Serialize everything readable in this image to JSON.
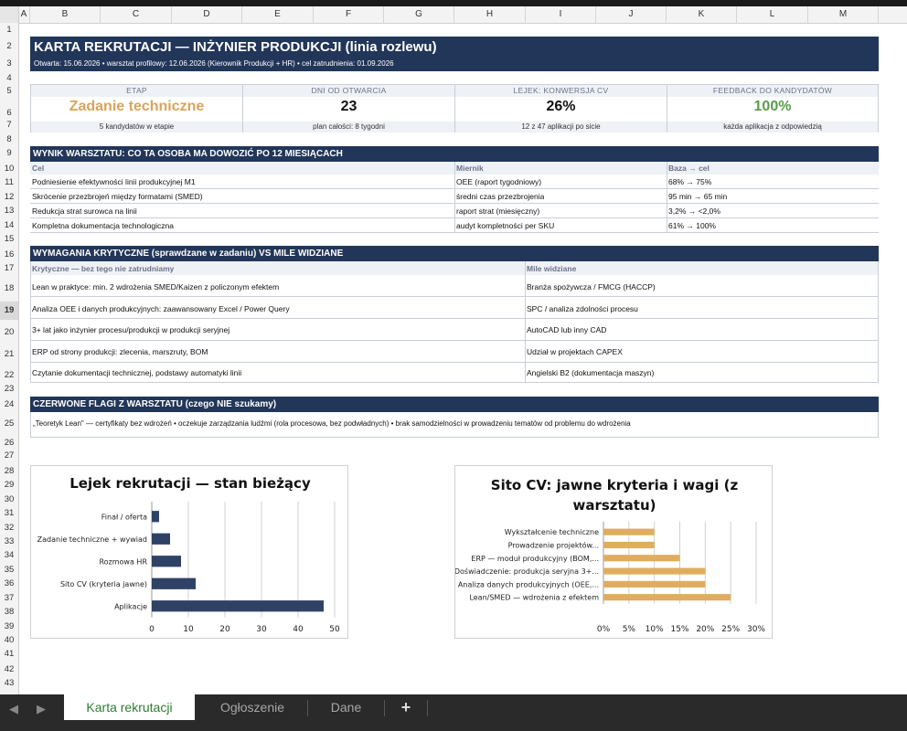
{
  "sheet": {
    "columns": [
      "A",
      "B",
      "C",
      "D",
      "E",
      "F",
      "G",
      "H",
      "I",
      "J",
      "K",
      "L",
      "M"
    ],
    "rows": [
      "1",
      "2",
      "3",
      "4",
      "5",
      "6",
      "7",
      "8",
      "9",
      "10",
      "11",
      "12",
      "13",
      "14",
      "15",
      "16",
      "17",
      "18",
      "19",
      "20",
      "21",
      "22",
      "23",
      "24",
      "25",
      "26",
      "27",
      "28",
      "29",
      "30",
      "31",
      "32",
      "33",
      "34",
      "35",
      "36",
      "37",
      "38",
      "39",
      "40",
      "41",
      "42",
      "43"
    ],
    "selected_row": "19"
  },
  "banner": {
    "title": "KARTA REKRUTACJI — INŻYNIER PRODUKCJI (linia rozlewu)",
    "subtitle": "Otwarta: 15.06.2026  •  warsztat profilowy: 12.06.2026 (Kierownik Produkcji + HR)  •  cel zatrudnienia: 01.09.2026"
  },
  "kpis": [
    {
      "label": "ETAP",
      "value": "Zadanie techniczne",
      "sub": "5 kandydatów w etapie",
      "color": "#d9a45a"
    },
    {
      "label": "DNI OD OTWARCIA",
      "value": "23",
      "sub": "plan całości: 8 tygodni",
      "color": "#111111"
    },
    {
      "label": "LEJEK: KONWERSJA CV",
      "value": "26%",
      "sub": "12 z 47 aplikacji po sicie",
      "color": "#111111"
    },
    {
      "label": "FEEDBACK DO KANDYDATÓW",
      "value": "100%",
      "sub": "każda aplikacja z odpowiedzią",
      "color": "#5a9b4a"
    }
  ],
  "wynik": {
    "header": "WYNIK WARSZTATU: CO TA OSOBA MA DOWOZIĆ PO 12 MIESIĄCACH",
    "col_headers": [
      "Cel",
      "Miernik",
      "Baza → cel"
    ],
    "rows": [
      [
        "Podniesienie efektywności linii produkcyjnej M1",
        "OEE (raport tygodniowy)",
        "68% → 75%"
      ],
      [
        "Skrócenie przezbrojeń między formatami (SMED)",
        "średni czas przezbrojenia",
        "95 min → 65 min"
      ],
      [
        "Redukcja strat surowca na linii",
        "raport strat (miesięczny)",
        "3,2% → <2,0%"
      ],
      [
        "Kompletna dokumentacja technologiczna",
        "audyt kompletności per SKU",
        "61% → 100%"
      ]
    ]
  },
  "wymagania": {
    "header": "WYMAGANIA KRYTYCZNE (sprawdzane w zadaniu) VS MILE WIDZIANE",
    "col_headers": [
      "Krytyczne — bez tego nie zatrudniamy",
      "Mile widziane"
    ],
    "rows": [
      [
        "Lean w praktyce: min. 2 wdrożenia SMED/Kaizen z policzonym efektem",
        "Branża spożywcza / FMCG (HACCP)"
      ],
      [
        "Analiza OEE i danych produkcyjnych: zaawansowany Excel / Power Query",
        "SPC / analiza zdolności procesu"
      ],
      [
        "3+ lat jako inżynier procesu/produkcji w produkcji seryjnej",
        "AutoCAD lub inny CAD"
      ],
      [
        "ERP od strony produkcji: zlecenia, marszruty, BOM",
        "Udział w projektach CAPEX"
      ],
      [
        "Czytanie dokumentacji technicznej, podstawy automatyki linii",
        "Angielski B2 (dokumentacja maszyn)"
      ]
    ]
  },
  "flagi": {
    "header": "CZERWONE FLAGI Z WARSZTATU (czego NIE szukamy)",
    "text": "„Teoretyk Lean\" — certyfikaty bez wdrożeń  •  oczekuje zarządzania ludźmi (rola procesowa, bez podwładnych)  •  brak samodzielności w prowadzeniu tematów od problemu do wdrożenia"
  },
  "chart_data": [
    {
      "type": "bar",
      "orientation": "horizontal",
      "title": "Lejek rekrutacji — stan bieżący",
      "categories": [
        "Aplikacje",
        "Sito CV (kryteria jawne)",
        "Rozmowa HR",
        "Zadanie techniczne + wywiad",
        "Finał / oferta"
      ],
      "values": [
        47,
        12,
        8,
        5,
        2
      ],
      "xlim": [
        0,
        50
      ],
      "xticks": [
        "0",
        "10",
        "20",
        "30",
        "40",
        "50"
      ],
      "grid": true,
      "color": "#2f4266"
    },
    {
      "type": "bar",
      "orientation": "horizontal",
      "title": "Sito CV: jawne kryteria i wagi (z warsztatu)",
      "categories": [
        "Lean/SMED — wdrożenia z efektem",
        "Analiza danych produkcyjnych (OEE,...",
        "Doświadczenie: produkcja seryjna 3+...",
        "ERP — moduł produkcyjny (BOM,...",
        "Prowadzenie projektów...",
        "Wykształcenie techniczne"
      ],
      "values": [
        25,
        20,
        20,
        15,
        10,
        10
      ],
      "xlim": [
        0,
        30
      ],
      "xticks": [
        "0%",
        "5%",
        "10%",
        "15%",
        "20%",
        "25%",
        "30%"
      ],
      "grid": true,
      "color": "#e0ad5f"
    }
  ],
  "tabs": {
    "items": [
      "Karta rekrutacji",
      "Ogłoszenie",
      "Dane"
    ],
    "active": "Karta rekrutacji",
    "add": "+"
  }
}
